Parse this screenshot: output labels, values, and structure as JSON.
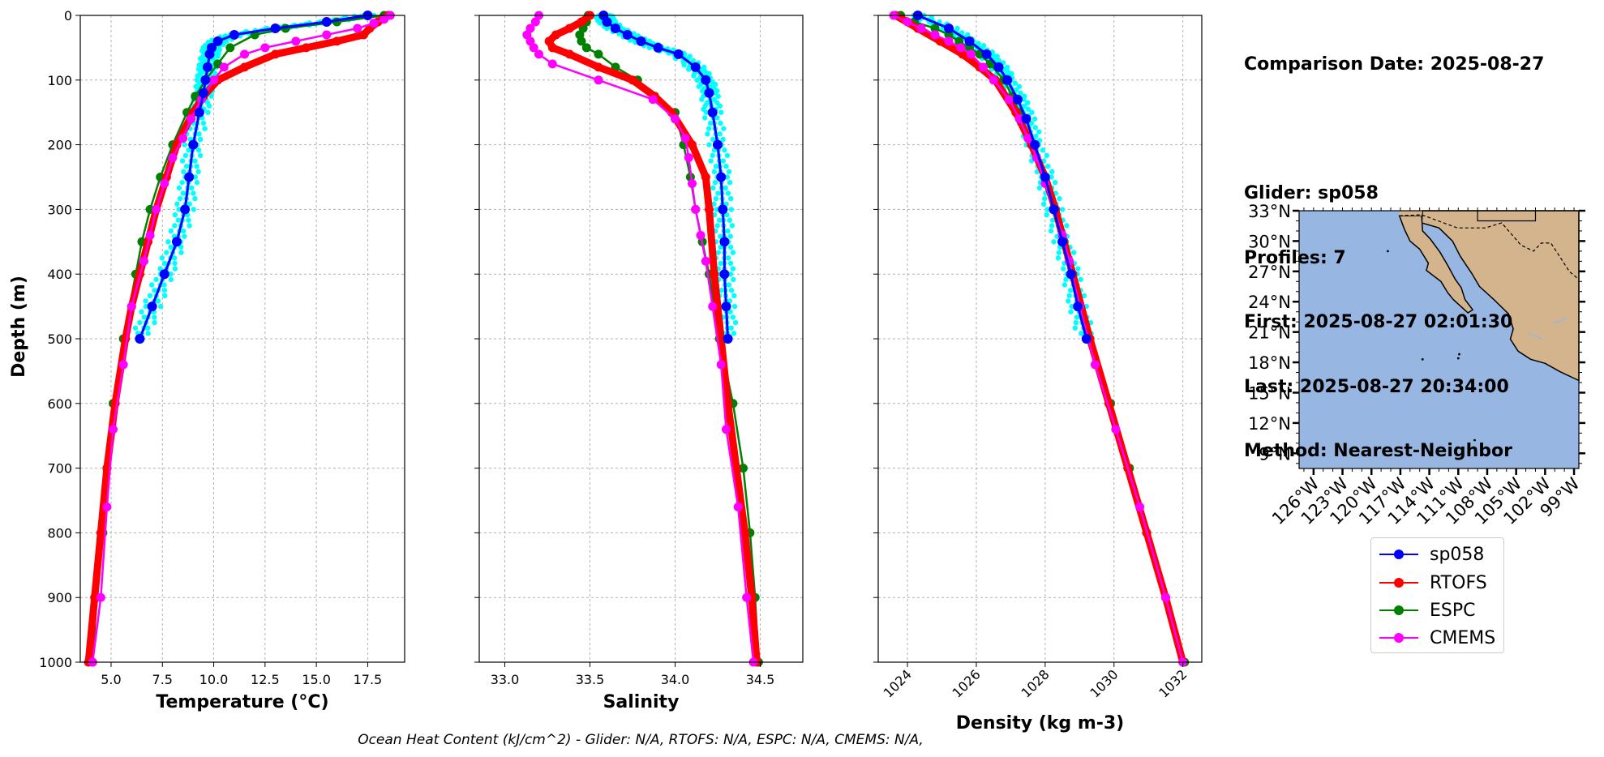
{
  "info": {
    "comparison_date": "Comparison Date: 2025-08-27",
    "glider": "Glider: sp058",
    "profiles": "Profiles: 7",
    "first": "First: 2025-08-27 02:01:30",
    "last": "Last: 2025-08-27 20:34:00",
    "method": "Method: Nearest-Neighbor"
  },
  "footer": "Ocean Heat Content (kJ/cm^2) - Glider: N/A,  RTOFS: N/A,  ESPC: N/A,  CMEMS: N/A,",
  "colors": {
    "sp058": "#0000ff",
    "sp058_raw": "#00ffff",
    "rtofs": "#ff0000",
    "espc": "#008000",
    "cmems": "#ff00ff",
    "ocean": "#97b6e1",
    "land": "#d4b48c"
  },
  "legend": [
    {
      "name": "sp058",
      "color": "#0000ff"
    },
    {
      "name": "RTOFS",
      "color": "#ff0000"
    },
    {
      "name": "ESPC",
      "color": "#008000"
    },
    {
      "name": "CMEMS",
      "color": "#ff00ff"
    }
  ],
  "map": {
    "lat_labels": [
      "33°N",
      "30°N",
      "27°N",
      "24°N",
      "21°N",
      "18°N",
      "15°N",
      "12°N",
      "9°N"
    ],
    "lon_labels": [
      "126°W",
      "123°W",
      "120°W",
      "117°W",
      "114°W",
      "111°W",
      "108°W",
      "105°W",
      "102°W",
      "99°W"
    ]
  },
  "chart_data": [
    {
      "type": "line",
      "xlabel": "Temperature (°C)",
      "ylabel": "Depth (m)",
      "xlim": [
        3.5,
        19.3
      ],
      "ylim": [
        1000,
        0
      ],
      "xticks": [
        5.0,
        7.5,
        10.0,
        12.5,
        15.0,
        17.5
      ],
      "xtick_labels": [
        "5.0",
        "7.5",
        "10.0",
        "12.5",
        "15.0",
        "17.5"
      ],
      "yticks": [
        0,
        100,
        200,
        300,
        400,
        500,
        600,
        700,
        800,
        900,
        1000
      ],
      "grid": true,
      "series": [
        {
          "name": "sp058",
          "depth": [
            0,
            10,
            20,
            30,
            40,
            50,
            60,
            80,
            100,
            120,
            150,
            200,
            250,
            300,
            350,
            400,
            450,
            500
          ],
          "values": [
            17.5,
            15.5,
            13.0,
            11.0,
            10.2,
            9.9,
            9.8,
            9.7,
            9.6,
            9.5,
            9.3,
            9.0,
            8.8,
            8.6,
            8.2,
            7.6,
            7.0,
            6.4
          ]
        },
        {
          "name": "RTOFS",
          "depth": [
            0,
            10,
            20,
            30,
            40,
            50,
            60,
            80,
            100,
            125,
            150,
            200,
            250,
            300,
            350,
            400,
            450,
            500,
            600,
            700,
            800,
            900,
            1000
          ],
          "values": [
            18.5,
            18.0,
            17.6,
            17.3,
            16.0,
            14.5,
            13.0,
            11.5,
            10.2,
            9.5,
            9.0,
            8.2,
            7.7,
            7.2,
            6.8,
            6.4,
            6.0,
            5.7,
            5.2,
            4.8,
            4.5,
            4.2,
            3.9
          ]
        },
        {
          "name": "ESPC",
          "depth": [
            0,
            10,
            20,
            30,
            50,
            75,
            100,
            125,
            150,
            200,
            250,
            300,
            350,
            400,
            500,
            600,
            700,
            800,
            900,
            1000
          ],
          "values": [
            18.3,
            16.0,
            13.5,
            12.0,
            10.8,
            10.2,
            9.6,
            9.1,
            8.7,
            8.0,
            7.4,
            6.9,
            6.5,
            6.2,
            5.6,
            5.1,
            4.8,
            4.6,
            4.3,
            4.1
          ]
        },
        {
          "name": "CMEMS",
          "depth": [
            0,
            6,
            12,
            20,
            30,
            40,
            50,
            60,
            80,
            100,
            130,
            160,
            190,
            220,
            260,
            300,
            340,
            380,
            450,
            540,
            640,
            760,
            900,
            1000
          ],
          "values": [
            18.6,
            18.3,
            17.8,
            17.0,
            15.5,
            14.0,
            12.5,
            11.5,
            10.5,
            10.0,
            9.4,
            8.9,
            8.5,
            8.0,
            7.6,
            7.2,
            6.9,
            6.6,
            6.0,
            5.6,
            5.1,
            4.8,
            4.5,
            4.1
          ]
        }
      ]
    },
    {
      "type": "line",
      "xlabel": "Salinity",
      "xlim": [
        32.85,
        34.75
      ],
      "ylim": [
        1000,
        0
      ],
      "xticks": [
        33.0,
        33.5,
        34.0,
        34.5
      ],
      "xtick_labels": [
        "33.0",
        "33.5",
        "34.0",
        "34.5"
      ],
      "grid": true,
      "series": [
        {
          "name": "sp058",
          "depth": [
            0,
            10,
            20,
            30,
            40,
            50,
            60,
            80,
            100,
            120,
            150,
            200,
            250,
            300,
            350,
            400,
            450,
            500
          ],
          "values": [
            33.58,
            33.6,
            33.65,
            33.72,
            33.8,
            33.9,
            34.02,
            34.12,
            34.18,
            34.2,
            34.22,
            34.25,
            34.27,
            34.28,
            34.29,
            34.29,
            34.3,
            34.31
          ]
        },
        {
          "name": "RTOFS",
          "depth": [
            0,
            10,
            20,
            30,
            40,
            50,
            60,
            80,
            100,
            125,
            150,
            200,
            250,
            300,
            400,
            500,
            600,
            700,
            800,
            900,
            1000
          ],
          "values": [
            33.5,
            33.45,
            33.38,
            33.3,
            33.26,
            33.28,
            33.38,
            33.55,
            33.75,
            33.88,
            33.98,
            34.1,
            34.18,
            34.2,
            34.23,
            34.27,
            34.31,
            34.36,
            34.41,
            34.45,
            34.48
          ]
        },
        {
          "name": "ESPC",
          "depth": [
            0,
            10,
            20,
            30,
            40,
            50,
            60,
            80,
            100,
            125,
            150,
            200,
            250,
            300,
            350,
            400,
            500,
            600,
            700,
            800,
            900,
            1000
          ],
          "values": [
            33.49,
            33.48,
            33.46,
            33.44,
            33.45,
            33.48,
            33.55,
            33.65,
            33.78,
            33.88,
            34.0,
            34.05,
            34.09,
            34.12,
            34.16,
            34.2,
            34.26,
            34.34,
            34.4,
            34.44,
            34.47,
            34.49
          ]
        },
        {
          "name": "CMEMS",
          "depth": [
            0,
            10,
            20,
            30,
            40,
            50,
            60,
            75,
            100,
            130,
            160,
            190,
            220,
            260,
            300,
            340,
            380,
            450,
            540,
            640,
            760,
            900,
            1000
          ],
          "values": [
            33.2,
            33.18,
            33.15,
            33.13,
            33.15,
            33.17,
            33.2,
            33.28,
            33.55,
            33.87,
            34.0,
            34.06,
            34.08,
            34.1,
            34.12,
            34.15,
            34.18,
            34.22,
            34.27,
            34.3,
            34.37,
            34.42,
            34.46
          ]
        }
      ]
    },
    {
      "type": "line",
      "xlabel": "Density (kg m-3)",
      "xlim": [
        1023.15,
        1032.55
      ],
      "ylim": [
        1000,
        0
      ],
      "xticks": [
        1024,
        1026,
        1028,
        1030,
        1032
      ],
      "xtick_labels": [
        "1024",
        "1026",
        "1028",
        "1030",
        "1032"
      ],
      "grid": true,
      "series": [
        {
          "name": "sp058",
          "depth": [
            0,
            20,
            40,
            60,
            80,
            100,
            130,
            160,
            200,
            250,
            300,
            350,
            400,
            450,
            500
          ],
          "values": [
            1024.3,
            1025.2,
            1025.8,
            1026.3,
            1026.65,
            1026.9,
            1027.2,
            1027.45,
            1027.7,
            1028.0,
            1028.25,
            1028.5,
            1028.75,
            1028.95,
            1029.2
          ]
        },
        {
          "name": "RTOFS",
          "depth": [
            0,
            20,
            40,
            60,
            80,
            100,
            150,
            200,
            250,
            300,
            400,
            500,
            600,
            700,
            800,
            900,
            1000
          ],
          "values": [
            1023.65,
            1024.3,
            1024.95,
            1025.6,
            1026.1,
            1026.55,
            1027.15,
            1027.6,
            1028.0,
            1028.3,
            1028.8,
            1029.3,
            1029.85,
            1030.4,
            1030.95,
            1031.5,
            1032.0
          ]
        },
        {
          "name": "ESPC",
          "depth": [
            0,
            10,
            20,
            30,
            40,
            50,
            60,
            75,
            100,
            125,
            150,
            200,
            250,
            300,
            350,
            400,
            500,
            600,
            700,
            800,
            900,
            1000
          ],
          "values": [
            1023.8,
            1024.2,
            1024.8,
            1025.2,
            1025.5,
            1025.8,
            1026.1,
            1026.4,
            1026.8,
            1027.05,
            1027.25,
            1027.6,
            1028.0,
            1028.3,
            1028.55,
            1028.8,
            1029.3,
            1029.9,
            1030.45,
            1030.95,
            1031.5,
            1032.05
          ]
        },
        {
          "name": "CMEMS",
          "depth": [
            0,
            10,
            20,
            30,
            40,
            50,
            60,
            80,
            100,
            130,
            160,
            190,
            220,
            260,
            300,
            340,
            380,
            450,
            540,
            640,
            760,
            900,
            1000
          ],
          "values": [
            1023.6,
            1024.0,
            1024.4,
            1024.8,
            1025.2,
            1025.55,
            1025.85,
            1026.2,
            1026.5,
            1026.95,
            1027.25,
            1027.5,
            1027.75,
            1028.0,
            1028.25,
            1028.5,
            1028.7,
            1029.0,
            1029.45,
            1030.05,
            1030.75,
            1031.5,
            1032.0
          ]
        }
      ]
    }
  ]
}
